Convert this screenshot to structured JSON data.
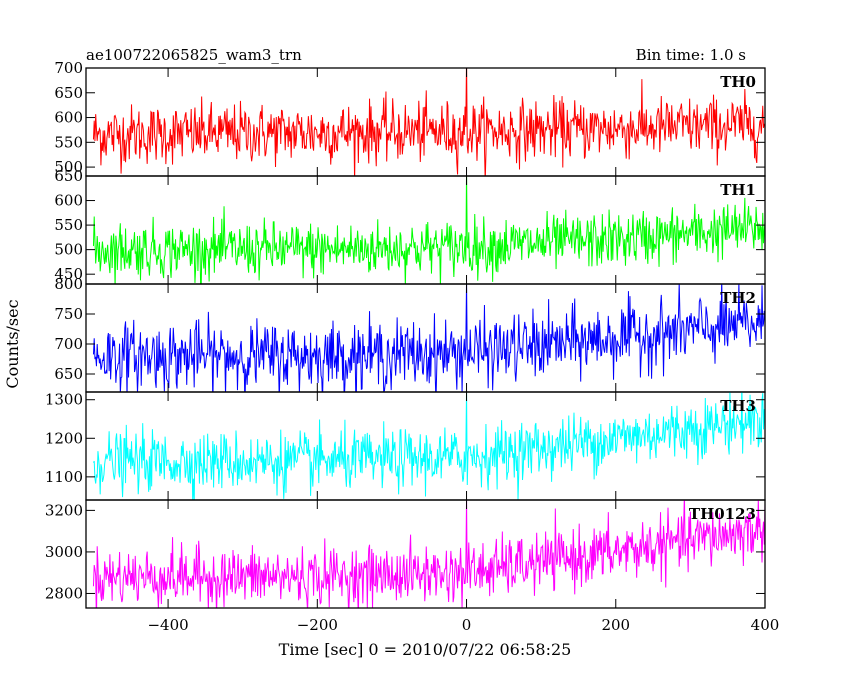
{
  "chart_data": {
    "type": "line",
    "title_left": "ae100722065825_wam3_trn",
    "title_right": "Bin time: 1.0 s",
    "xlabel": "Time [sec] 0 = 2010/07/22 06:58:25",
    "ylabel": "Counts/sec",
    "x_range": [
      -510,
      400
    ],
    "x_ticks": [
      -400,
      -200,
      0,
      200,
      400
    ],
    "x_tick_labels": [
      "−400",
      "−200",
      "0",
      "200",
      "400"
    ],
    "bin_time_s": 1.0,
    "panels": [
      {
        "name": "TH0",
        "color": "#ff0000",
        "ylim": [
          482,
          700
        ],
        "yticks": [
          500,
          550,
          600,
          650,
          700
        ],
        "trend": [
          [
            -500,
            565
          ],
          [
            -200,
            570
          ],
          [
            0,
            572
          ],
          [
            200,
            578
          ],
          [
            400,
            585
          ]
        ],
        "noise_sd": 30,
        "spike_x": 0,
        "spike_value": 720
      },
      {
        "name": "TH1",
        "color": "#00ff00",
        "ylim": [
          430,
          650
        ],
        "yticks": [
          450,
          500,
          550,
          600,
          650
        ],
        "trend": [
          [
            -500,
            500
          ],
          [
            -200,
            500
          ],
          [
            0,
            505
          ],
          [
            200,
            520
          ],
          [
            400,
            545
          ]
        ],
        "noise_sd": 28,
        "spike_x": 0,
        "spike_value": 660
      },
      {
        "name": "TH2",
        "color": "#0000ff",
        "ylim": [
          620,
          800
        ],
        "yticks": [
          650,
          700,
          750,
          800
        ],
        "trend": [
          [
            -500,
            680
          ],
          [
            -200,
            680
          ],
          [
            0,
            685
          ],
          [
            200,
            710
          ],
          [
            400,
            735
          ]
        ],
        "noise_sd": 28,
        "spike_x": 0,
        "spike_value": 805
      },
      {
        "name": "TH3",
        "color": "#00ffff",
        "ylim": [
          1040,
          1320
        ],
        "yticks": [
          1100,
          1200,
          1300
        ],
        "trend": [
          [
            -500,
            1140
          ],
          [
            -200,
            1140
          ],
          [
            0,
            1150
          ],
          [
            200,
            1200
          ],
          [
            400,
            1250
          ]
        ],
        "noise_sd": 38,
        "spike_x": 0,
        "spike_value": 1325
      },
      {
        "name": "TH0123",
        "color": "#ff00ff",
        "ylim": [
          2730,
          3250
        ],
        "yticks": [
          2800,
          3000,
          3200
        ],
        "trend": [
          [
            -500,
            2880
          ],
          [
            -200,
            2880
          ],
          [
            0,
            2900
          ],
          [
            200,
            3000
          ],
          [
            400,
            3110
          ]
        ],
        "noise_sd": 70,
        "spike_x": 0,
        "spike_value": 3260
      }
    ]
  }
}
